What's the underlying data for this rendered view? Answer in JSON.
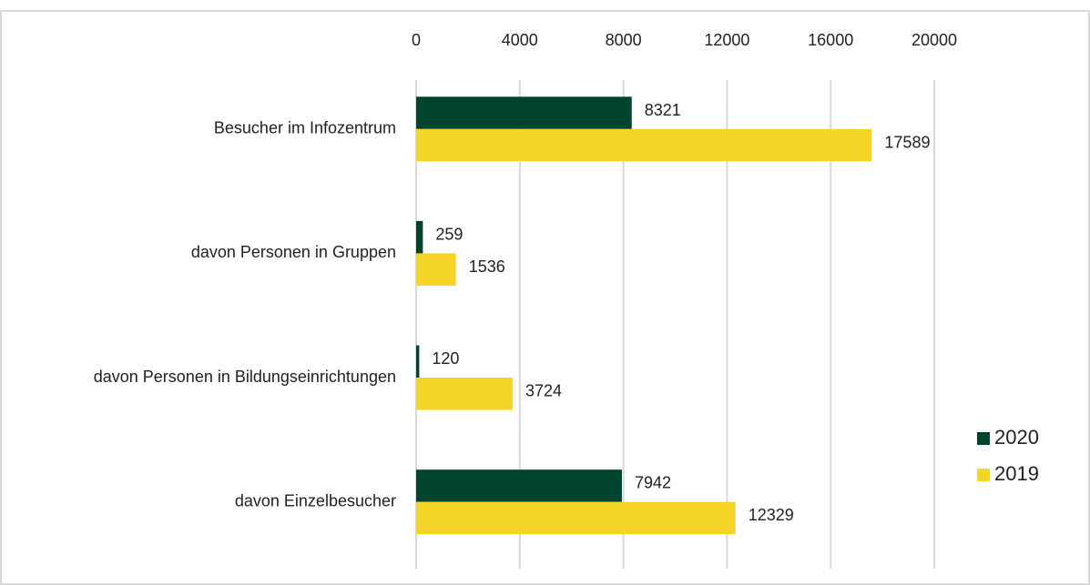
{
  "chart_data": {
    "type": "hbar",
    "categories": [
      "Besucher im Infozentrum",
      "davon Personen in Gruppen",
      "davon Personen in Bildungseinrichtungen",
      "davon Einzelbesucher"
    ],
    "series": [
      {
        "name": "2020",
        "color": "#00432f",
        "values": [
          8321,
          259,
          120,
          7942
        ]
      },
      {
        "name": "2019",
        "color": "#f5d428",
        "values": [
          17589,
          1536,
          3724,
          12329
        ]
      }
    ],
    "xlim": [
      0,
      20000
    ],
    "xticks": [
      0,
      4000,
      8000,
      12000,
      16000,
      20000
    ],
    "grid": true,
    "legend": "right"
  }
}
